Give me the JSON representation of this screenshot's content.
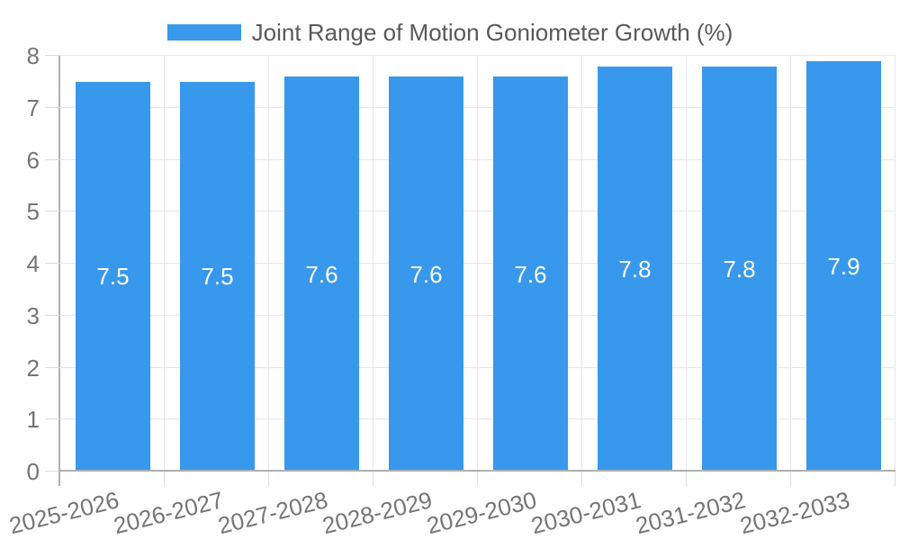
{
  "chart_data": {
    "type": "bar",
    "title": "Joint Range of Motion Goniometer Growth (%)",
    "categories": [
      "2025-2026",
      "2026-2027",
      "2027-2028",
      "2028-2029",
      "2029-2030",
      "2030-2031",
      "2031-2032",
      "2032-2033"
    ],
    "values": [
      7.5,
      7.5,
      7.6,
      7.6,
      7.6,
      7.8,
      7.8,
      7.9
    ],
    "value_labels": [
      "7.5",
      "7.5",
      "7.6",
      "7.6",
      "7.6",
      "7.8",
      "7.8",
      "7.9"
    ],
    "series_name": "Joint Range of Motion Goniometer Growth (%)",
    "xlabel": "",
    "ylabel": "",
    "ylim": [
      0,
      8
    ],
    "yticks": [
      0,
      1,
      2,
      3,
      4,
      5,
      6,
      7,
      8
    ],
    "grid": true,
    "legend_position": "top",
    "x_label_rotation_deg": -14,
    "colors": {
      "bar": "#3898ec",
      "grid": "#e6e6e6",
      "axis_line": "#b0b0b0",
      "tick_mark": "#dcdcdc",
      "axis_text": "#757575",
      "title_text": "#58595b",
      "value_text": "#ffffff",
      "background": "#ffffff"
    }
  }
}
